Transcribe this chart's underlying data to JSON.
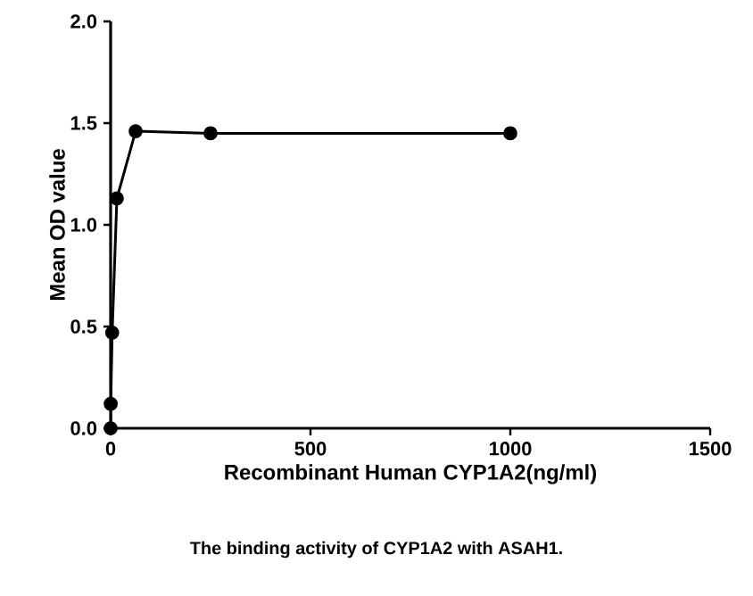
{
  "chart_data": {
    "type": "line",
    "xlabel": "Recombinant  Human CYP1A2(ng/ml)",
    "ylabel": "Mean OD value",
    "annotations": [
      "The binding activity of CYP1A2 with ASAH1."
    ],
    "x": [
      0.06,
      0.24,
      3.9,
      15.6,
      62.5,
      250,
      1000
    ],
    "series": [
      {
        "color": "#000000",
        "values": [
          0.0,
          0.12,
          0.47,
          1.13,
          1.46,
          1.45,
          1.45
        ]
      }
    ],
    "xlim": [
      0,
      1500
    ],
    "xticks": [
      0,
      500,
      1000,
      1500
    ],
    "ylim": [
      0,
      2
    ],
    "yticks": [
      {
        "value": 0,
        "label": "0.0"
      },
      {
        "value": 0.5,
        "label": "0.5"
      },
      {
        "value": 1,
        "label": "1.0"
      },
      {
        "value": 1.5,
        "label": "1.5"
      },
      {
        "value": 2,
        "label": "2.0"
      }
    ],
    "marker": "circle",
    "line_style": "solid"
  }
}
